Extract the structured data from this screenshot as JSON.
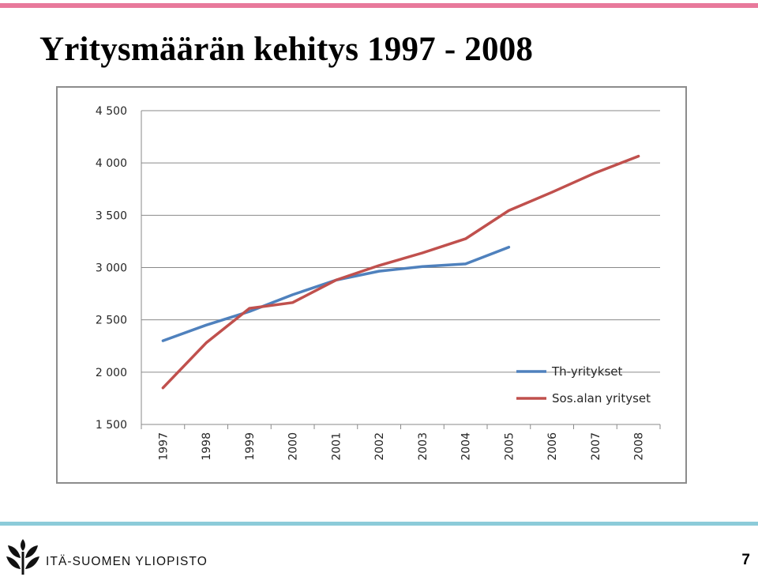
{
  "slide": {
    "title": "Yritysmäärän kehitys 1997 - 2008",
    "page_number": "7",
    "footer_org": "ITÄ-SUOMEN YLIOPISTO",
    "accent_top": "#e8799b",
    "accent_bottom": "#8ccbd9"
  },
  "chart_data": {
    "type": "line",
    "title": "",
    "xlabel": "",
    "ylabel": "",
    "categories": [
      "1997",
      "1998",
      "1999",
      "2000",
      "2001",
      "2002",
      "2003",
      "2004",
      "2005",
      "2006",
      "2007",
      "2008"
    ],
    "ylim": [
      1500,
      4500
    ],
    "yticks": [
      1500,
      2000,
      2500,
      3000,
      3500,
      4000,
      4500
    ],
    "ytick_labels": [
      "1 500",
      "2 000",
      "2 500",
      "3 000",
      "3 500",
      "4 000",
      "4 500"
    ],
    "grid": "horizontal",
    "legend_position": "bottom-right",
    "series": [
      {
        "name": "Th-yritykset",
        "color": "#4f81bd",
        "values": [
          2300,
          2450,
          2580,
          2740,
          2880,
          2965,
          3010,
          3035,
          3195,
          null,
          null,
          null
        ]
      },
      {
        "name": "Sos.alan yrityset",
        "color": "#c0504d",
        "values": [
          1850,
          2280,
          2610,
          2665,
          2880,
          3020,
          3140,
          3275,
          3545,
          3720,
          3905,
          4065
        ]
      }
    ]
  }
}
